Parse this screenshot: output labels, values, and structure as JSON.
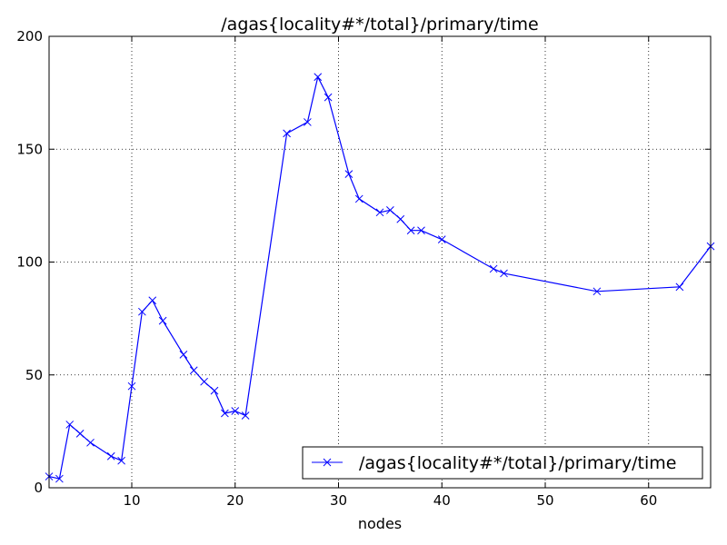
{
  "chart_data": {
    "type": "line",
    "title": "/agas{locality#*/total}/primary/time",
    "xlabel": "nodes",
    "ylabel": "",
    "xlim": [
      2,
      66
    ],
    "ylim": [
      0,
      200
    ],
    "xticks": [
      10,
      20,
      30,
      40,
      50,
      60
    ],
    "yticks": [
      0,
      50,
      100,
      150,
      200
    ],
    "grid": true,
    "legend_position": "lower-right",
    "marker": "x",
    "color": "#0000ff",
    "series": [
      {
        "name": "/agas{locality#*/total}/primary/time",
        "x": [
          2,
          3,
          4,
          5,
          6,
          8,
          9,
          10,
          11,
          12,
          13,
          15,
          16,
          17,
          18,
          19,
          20,
          21,
          25,
          27,
          28,
          29,
          31,
          32,
          34,
          35,
          36,
          37,
          38,
          40,
          45,
          46,
          55,
          63,
          66
        ],
        "y": [
          5,
          4,
          28,
          24,
          20,
          14,
          12,
          45,
          78,
          83,
          74,
          59,
          52,
          47,
          43,
          33,
          34,
          32,
          157,
          162,
          182,
          173,
          139,
          128,
          122,
          123,
          119,
          114,
          114,
          110,
          97,
          95,
          87,
          89,
          107
        ]
      }
    ]
  }
}
